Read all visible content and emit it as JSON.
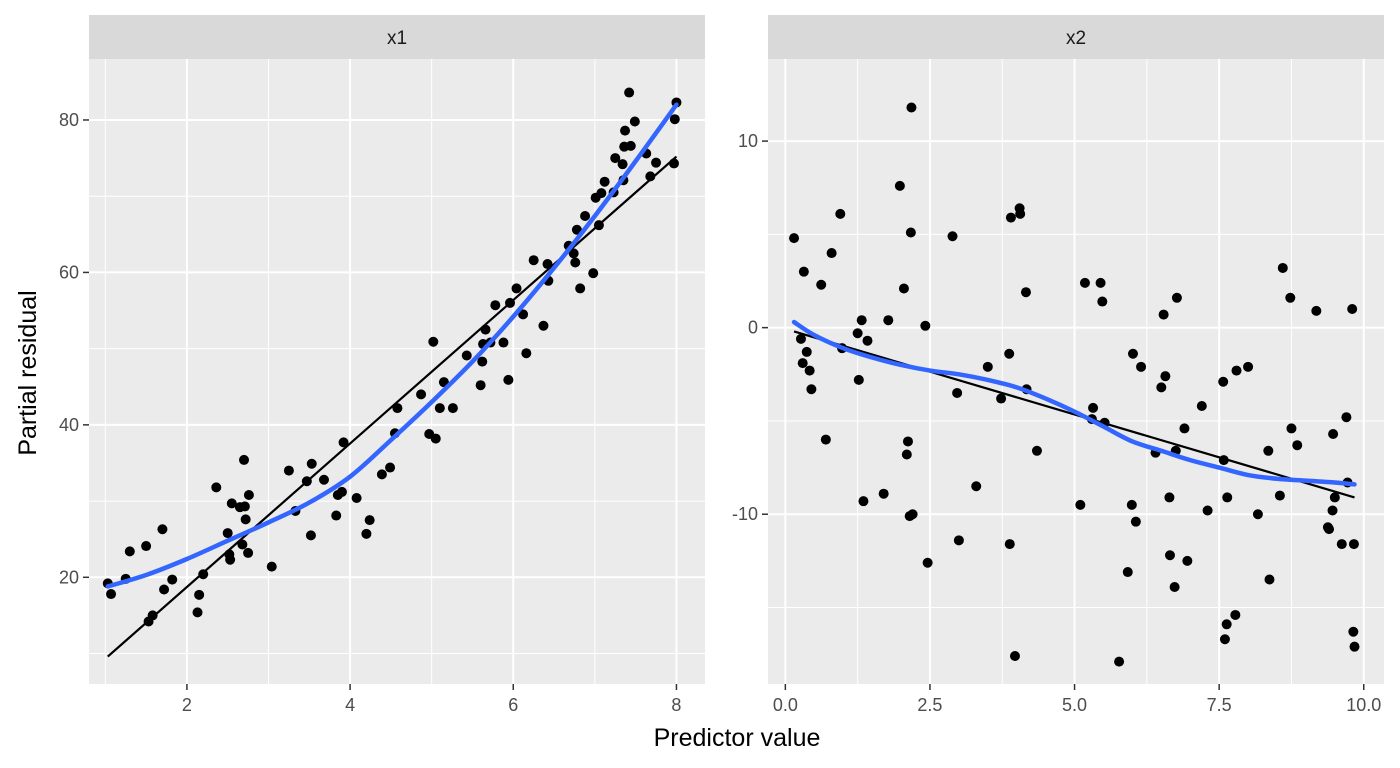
{
  "chart_data": {
    "type": "scatter",
    "xlabel": "Predictor value",
    "ylabel": "Partial residual",
    "colors": {
      "panel_bg": "#EBEBEB",
      "strip_bg": "#D9D9D9",
      "grid": "#FFFFFF",
      "points": "#000000",
      "fit_line": "#000000",
      "smooth_line": "#3366FF"
    },
    "panels": [
      {
        "strip": "x1",
        "xlim": [
          0.8,
          8.35
        ],
        "ylim": [
          6,
          88
        ],
        "xticks": [
          2,
          4,
          6,
          8
        ],
        "xtick_labels": [
          "2",
          "4",
          "6",
          "8"
        ],
        "yticks": [
          20,
          40,
          60,
          80
        ],
        "ytick_labels": [
          "20",
          "40",
          "60",
          "80"
        ],
        "points": [
          [
            1.03,
            19.2
          ],
          [
            1.07,
            17.8
          ],
          [
            1.25,
            19.8
          ],
          [
            1.3,
            23.4
          ],
          [
            1.5,
            24.1
          ],
          [
            1.53,
            14.2
          ],
          [
            1.58,
            15
          ],
          [
            1.7,
            26.3
          ],
          [
            1.72,
            18.4
          ],
          [
            1.82,
            19.7
          ],
          [
            2.13,
            15.4
          ],
          [
            2.15,
            17.7
          ],
          [
            2.2,
            20.4
          ],
          [
            2.36,
            31.8
          ],
          [
            2.5,
            25.8
          ],
          [
            2.52,
            23
          ],
          [
            2.53,
            22.3
          ],
          [
            2.55,
            29.7
          ],
          [
            2.65,
            29.2
          ],
          [
            2.68,
            24.3
          ],
          [
            2.7,
            35.4
          ],
          [
            2.71,
            29.3
          ],
          [
            2.72,
            27.6
          ],
          [
            2.75,
            23.2
          ],
          [
            2.76,
            30.8
          ],
          [
            3.04,
            21.4
          ],
          [
            3.25,
            34
          ],
          [
            3.33,
            28.7
          ],
          [
            3.47,
            32.6
          ],
          [
            3.52,
            25.5
          ],
          [
            3.53,
            34.9
          ],
          [
            3.68,
            32.8
          ],
          [
            3.83,
            28.1
          ],
          [
            3.85,
            30.8
          ],
          [
            3.9,
            31.2
          ],
          [
            3.92,
            37.7
          ],
          [
            4.08,
            30.4
          ],
          [
            4.2,
            25.7
          ],
          [
            4.24,
            27.5
          ],
          [
            4.39,
            33.5
          ],
          [
            4.49,
            34.4
          ],
          [
            4.55,
            38.9
          ],
          [
            4.58,
            42.2
          ],
          [
            4.87,
            44
          ],
          [
            4.97,
            38.8
          ],
          [
            5.02,
            50.9
          ],
          [
            5.05,
            38.2
          ],
          [
            5.1,
            42.2
          ],
          [
            5.15,
            45.6
          ],
          [
            5.26,
            42.2
          ],
          [
            5.43,
            49.1
          ],
          [
            5.6,
            45.2
          ],
          [
            5.62,
            48.3
          ],
          [
            5.63,
            50.6
          ],
          [
            5.66,
            52.5
          ],
          [
            5.72,
            50.8
          ],
          [
            5.78,
            55.7
          ],
          [
            5.88,
            50.8
          ],
          [
            5.94,
            45.9
          ],
          [
            5.96,
            56
          ],
          [
            6.04,
            57.9
          ],
          [
            6.12,
            54.5
          ],
          [
            6.16,
            49.4
          ],
          [
            6.25,
            61.6
          ],
          [
            6.37,
            53
          ],
          [
            6.42,
            61.1
          ],
          [
            6.43,
            58.9
          ],
          [
            6.68,
            63.5
          ],
          [
            6.74,
            62.5
          ],
          [
            6.76,
            61.3
          ],
          [
            6.78,
            65.6
          ],
          [
            6.82,
            57.9
          ],
          [
            6.88,
            67.4
          ],
          [
            6.98,
            59.9
          ],
          [
            7.01,
            69.8
          ],
          [
            7.05,
            66.2
          ],
          [
            7.08,
            70.4
          ],
          [
            7.12,
            71.9
          ],
          [
            7.23,
            70.5
          ],
          [
            7.25,
            75
          ],
          [
            7.34,
            74.2
          ],
          [
            7.35,
            72.1
          ],
          [
            7.36,
            76.5
          ],
          [
            7.37,
            78.6
          ],
          [
            7.42,
            83.6
          ],
          [
            7.44,
            76.6
          ],
          [
            7.49,
            79.8
          ],
          [
            7.63,
            75.6
          ],
          [
            7.68,
            72.6
          ],
          [
            7.75,
            74.4
          ],
          [
            7.97,
            74.3
          ],
          [
            7.98,
            80.1
          ],
          [
            8.0,
            82.3
          ]
        ],
        "fit_line": [
          [
            1.03,
            9.6
          ],
          [
            8.0,
            75.2
          ]
        ],
        "smooth_line": [
          [
            1.03,
            18.8
          ],
          [
            1.5,
            20.3
          ],
          [
            2.0,
            22.4
          ],
          [
            2.5,
            24.8
          ],
          [
            3.0,
            27.2
          ],
          [
            3.5,
            29.8
          ],
          [
            4.0,
            33.2
          ],
          [
            4.5,
            38.0
          ],
          [
            5.0,
            43.0
          ],
          [
            5.5,
            48.3
          ],
          [
            6.0,
            54.2
          ],
          [
            6.5,
            60.6
          ],
          [
            7.0,
            67.4
          ],
          [
            7.5,
            74.6
          ],
          [
            8.0,
            82.0
          ]
        ]
      },
      {
        "strip": "x2",
        "xlim": [
          -0.3,
          10.35
        ],
        "ylim": [
          -19.1,
          14.4
        ],
        "xticks": [
          0,
          2.5,
          5,
          7.5,
          10
        ],
        "xtick_labels": [
          "0.0",
          "2.5",
          "5.0",
          "7.5",
          "10.0"
        ],
        "yticks": [
          -10,
          0,
          10
        ],
        "ytick_labels": [
          "-10",
          "0",
          "10"
        ],
        "points": [
          [
            0.15,
            4.8
          ],
          [
            0.27,
            -0.6
          ],
          [
            0.3,
            -1.9
          ],
          [
            0.32,
            3
          ],
          [
            0.37,
            -1.3
          ],
          [
            0.42,
            -2.3
          ],
          [
            0.45,
            -3.3
          ],
          [
            0.62,
            2.3
          ],
          [
            0.7,
            -6
          ],
          [
            0.8,
            4
          ],
          [
            0.95,
            6.1
          ],
          [
            0.98,
            -1.1
          ],
          [
            1.25,
            -0.3
          ],
          [
            1.27,
            -2.8
          ],
          [
            1.32,
            0.4
          ],
          [
            1.35,
            -9.3
          ],
          [
            1.42,
            -0.7
          ],
          [
            1.7,
            -8.9
          ],
          [
            1.78,
            0.4
          ],
          [
            1.98,
            7.6
          ],
          [
            2.05,
            2.1
          ],
          [
            2.1,
            -6.8
          ],
          [
            2.12,
            -6.1
          ],
          [
            2.15,
            -10.1
          ],
          [
            2.17,
            5.1
          ],
          [
            2.18,
            11.8
          ],
          [
            2.2,
            -10
          ],
          [
            2.42,
            0.1
          ],
          [
            2.46,
            -12.6
          ],
          [
            2.89,
            4.9
          ],
          [
            2.97,
            -3.5
          ],
          [
            3.0,
            -11.4
          ],
          [
            3.3,
            -8.5
          ],
          [
            3.5,
            -2.1
          ],
          [
            3.73,
            -3.8
          ],
          [
            3.87,
            -1.4
          ],
          [
            3.88,
            -11.6
          ],
          [
            3.9,
            5.9
          ],
          [
            3.97,
            -17.6
          ],
          [
            4.05,
            6.4
          ],
          [
            4.06,
            6.1
          ],
          [
            4.16,
            1.9
          ],
          [
            4.17,
            -3.3
          ],
          [
            4.35,
            -6.6
          ],
          [
            5.1,
            -9.5
          ],
          [
            5.18,
            2.4
          ],
          [
            5.3,
            -4.9
          ],
          [
            5.32,
            -4.3
          ],
          [
            5.45,
            2.4
          ],
          [
            5.48,
            1.4
          ],
          [
            5.52,
            -5.1
          ],
          [
            5.77,
            -17.9
          ],
          [
            5.92,
            -13.1
          ],
          [
            5.99,
            -9.5
          ],
          [
            6.01,
            -1.4
          ],
          [
            6.06,
            -10.4
          ],
          [
            6.15,
            -2.1
          ],
          [
            6.4,
            -6.7
          ],
          [
            6.5,
            -3.2
          ],
          [
            6.54,
            0.7
          ],
          [
            6.57,
            -2.6
          ],
          [
            6.64,
            -9.1
          ],
          [
            6.65,
            -12.2
          ],
          [
            6.73,
            -13.9
          ],
          [
            6.75,
            -6.6
          ],
          [
            6.77,
            1.6
          ],
          [
            6.9,
            -5.4
          ],
          [
            6.95,
            -12.5
          ],
          [
            7.2,
            -4.2
          ],
          [
            7.3,
            -9.8
          ],
          [
            7.57,
            -2.9
          ],
          [
            7.58,
            -7.1
          ],
          [
            7.6,
            -16.7
          ],
          [
            7.63,
            -15.9
          ],
          [
            7.64,
            -9.1
          ],
          [
            7.78,
            -15.4
          ],
          [
            7.8,
            -2.3
          ],
          [
            8.0,
            -2.1
          ],
          [
            8.17,
            -10
          ],
          [
            8.35,
            -6.6
          ],
          [
            8.37,
            -13.5
          ],
          [
            8.55,
            -9
          ],
          [
            8.6,
            3.2
          ],
          [
            8.73,
            1.6
          ],
          [
            8.75,
            -5.4
          ],
          [
            8.85,
            -6.3
          ],
          [
            9.18,
            0.9
          ],
          [
            9.38,
            -10.7
          ],
          [
            9.4,
            -10.8
          ],
          [
            9.46,
            -9.8
          ],
          [
            9.47,
            -5.7
          ],
          [
            9.5,
            -9.1
          ],
          [
            9.62,
            -11.6
          ],
          [
            9.7,
            -4.8
          ],
          [
            9.72,
            -8.3
          ],
          [
            9.8,
            1
          ],
          [
            9.82,
            -16.3
          ],
          [
            9.83,
            -11.6
          ],
          [
            9.84,
            -17.1
          ]
        ],
        "fit_line": [
          [
            0.15,
            -0.2
          ],
          [
            9.84,
            -9.1
          ]
        ],
        "smooth_line": [
          [
            0.15,
            0.3
          ],
          [
            0.5,
            -0.4
          ],
          [
            1.0,
            -1.1
          ],
          [
            1.5,
            -1.6
          ],
          [
            2.0,
            -2.0
          ],
          [
            2.5,
            -2.3
          ],
          [
            3.0,
            -2.5
          ],
          [
            3.5,
            -2.8
          ],
          [
            4.0,
            -3.2
          ],
          [
            4.5,
            -3.8
          ],
          [
            5.0,
            -4.5
          ],
          [
            5.5,
            -5.3
          ],
          [
            6.0,
            -6.1
          ],
          [
            6.5,
            -6.6
          ],
          [
            7.0,
            -7.1
          ],
          [
            7.5,
            -7.5
          ],
          [
            8.0,
            -7.9
          ],
          [
            8.5,
            -8.1
          ],
          [
            9.0,
            -8.2
          ],
          [
            9.5,
            -8.3
          ],
          [
            9.84,
            -8.4
          ]
        ]
      }
    ]
  }
}
